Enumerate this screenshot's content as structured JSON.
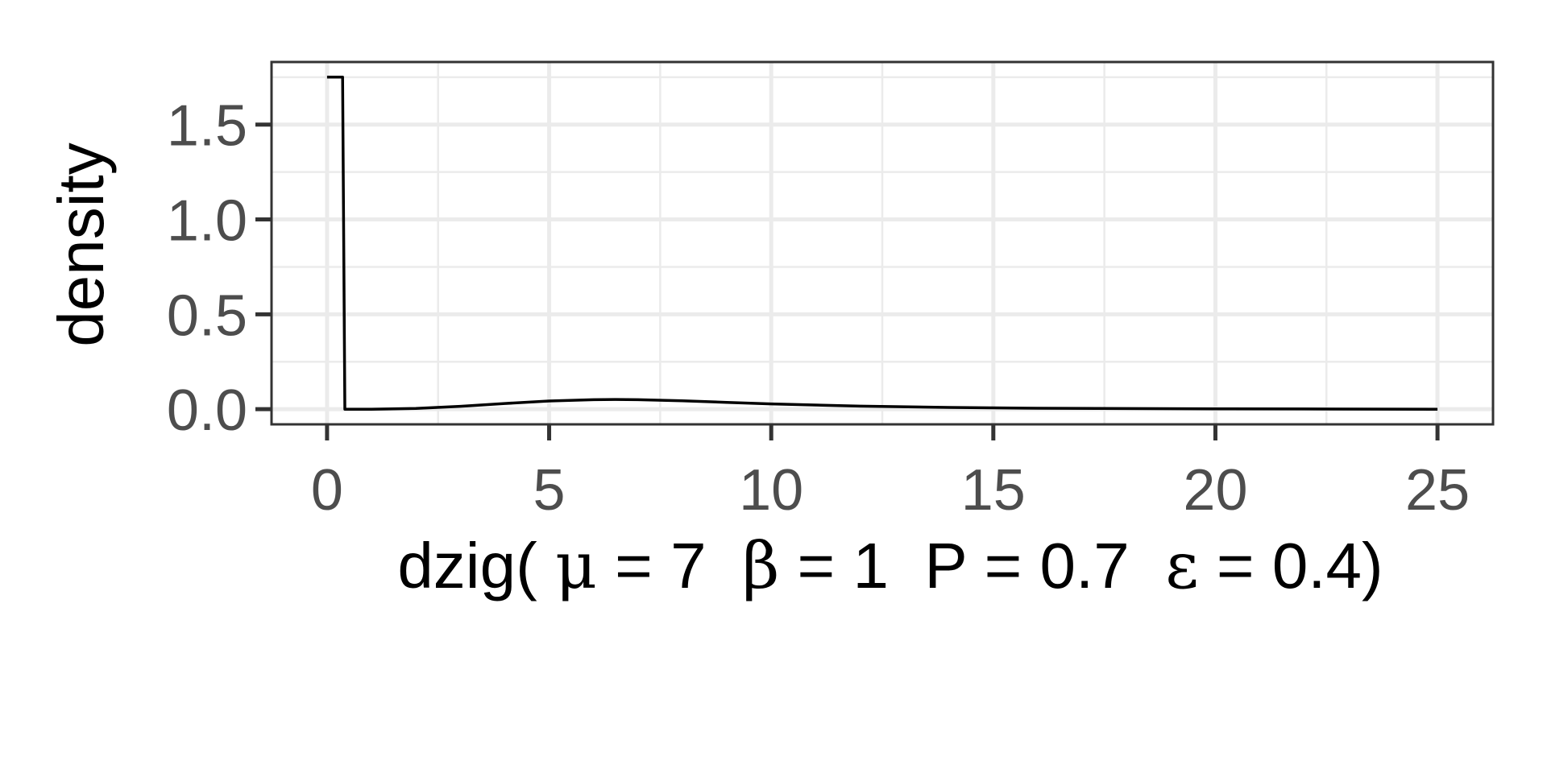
{
  "chart_data": {
    "type": "line",
    "title": "",
    "ylabel": "density",
    "xlabel_parts": [
      "dzig( ",
      "μ",
      " = 7  ",
      "β",
      " = 1  P = 0.7  ",
      "ε",
      " = 0.4)"
    ],
    "xlim": [
      -1.25,
      26.25
    ],
    "ylim": [
      -0.08,
      1.83
    ],
    "x_ticks": [
      0,
      5,
      10,
      15,
      20,
      25
    ],
    "x_tick_labels": [
      "0",
      "5",
      "10",
      "15",
      "20",
      "25"
    ],
    "y_ticks": [
      0.0,
      0.5,
      1.0,
      1.5
    ],
    "y_tick_labels": [
      "0.0",
      "0.5",
      "1.0",
      "1.5"
    ],
    "grid": true,
    "legend": "none",
    "line_color": "#000000",
    "grid_color": "#ebebeb",
    "series": [
      {
        "x": [
          0,
          0.35,
          0.4,
          1,
          2,
          3,
          4,
          5,
          6,
          6.5,
          7,
          8,
          9,
          10,
          12,
          14,
          16,
          18,
          20,
          22,
          25
        ],
        "y": [
          1.75,
          1.75,
          0.0,
          0.0,
          0.004,
          0.015,
          0.03,
          0.043,
          0.05,
          0.051,
          0.05,
          0.044,
          0.036,
          0.028,
          0.016,
          0.009,
          0.005,
          0.003,
          0.002,
          0.001,
          0.0
        ]
      }
    ]
  }
}
